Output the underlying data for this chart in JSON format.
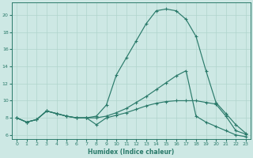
{
  "xlabel": "Humidex (Indice chaleur)",
  "x_ticks": [
    0,
    1,
    2,
    3,
    4,
    5,
    6,
    7,
    8,
    9,
    10,
    11,
    12,
    13,
    14,
    15,
    16,
    17,
    18,
    19,
    20,
    21,
    22,
    23
  ],
  "xlim": [
    -0.5,
    23.5
  ],
  "ylim": [
    5.5,
    21.5
  ],
  "y_ticks": [
    6,
    8,
    10,
    12,
    14,
    16,
    18,
    20
  ],
  "bg_color": "#cde8e4",
  "grid_color": "#b0d4cc",
  "line_color": "#2a7a6a",
  "line1_x": [
    0,
    1,
    2,
    3,
    4,
    5,
    6,
    7,
    8,
    9,
    10,
    11,
    12,
    13,
    14,
    15,
    16,
    17,
    18,
    19,
    20,
    21,
    22,
    23
  ],
  "line1_y": [
    8.0,
    7.5,
    7.8,
    8.8,
    8.5,
    8.2,
    8.0,
    8.0,
    8.2,
    9.5,
    13.0,
    15.0,
    17.0,
    19.0,
    20.5,
    20.7,
    20.5,
    19.5,
    17.5,
    13.5,
    9.8,
    8.5,
    7.2,
    6.2
  ],
  "line2_x": [
    0,
    1,
    2,
    3,
    4,
    5,
    6,
    7,
    8,
    9,
    10,
    11,
    12,
    13,
    14,
    15,
    16,
    17,
    18,
    19,
    20,
    21,
    22,
    23
  ],
  "line2_y": [
    8.0,
    7.5,
    7.8,
    8.8,
    8.5,
    8.2,
    8.0,
    8.0,
    7.2,
    8.0,
    8.3,
    8.6,
    9.0,
    9.4,
    9.7,
    9.9,
    10.0,
    10.0,
    10.0,
    9.8,
    9.6,
    8.2,
    6.5,
    6.1
  ],
  "line3_x": [
    0,
    1,
    2,
    3,
    4,
    5,
    6,
    7,
    8,
    9,
    10,
    11,
    12,
    13,
    14,
    15,
    16,
    17,
    18,
    19,
    20,
    21,
    22,
    23
  ],
  "line3_y": [
    8.0,
    7.5,
    7.8,
    8.8,
    8.5,
    8.2,
    8.0,
    8.0,
    8.0,
    8.2,
    8.6,
    9.1,
    9.8,
    10.5,
    11.3,
    12.1,
    12.9,
    13.5,
    8.2,
    7.5,
    7.0,
    6.5,
    6.0,
    5.8
  ]
}
